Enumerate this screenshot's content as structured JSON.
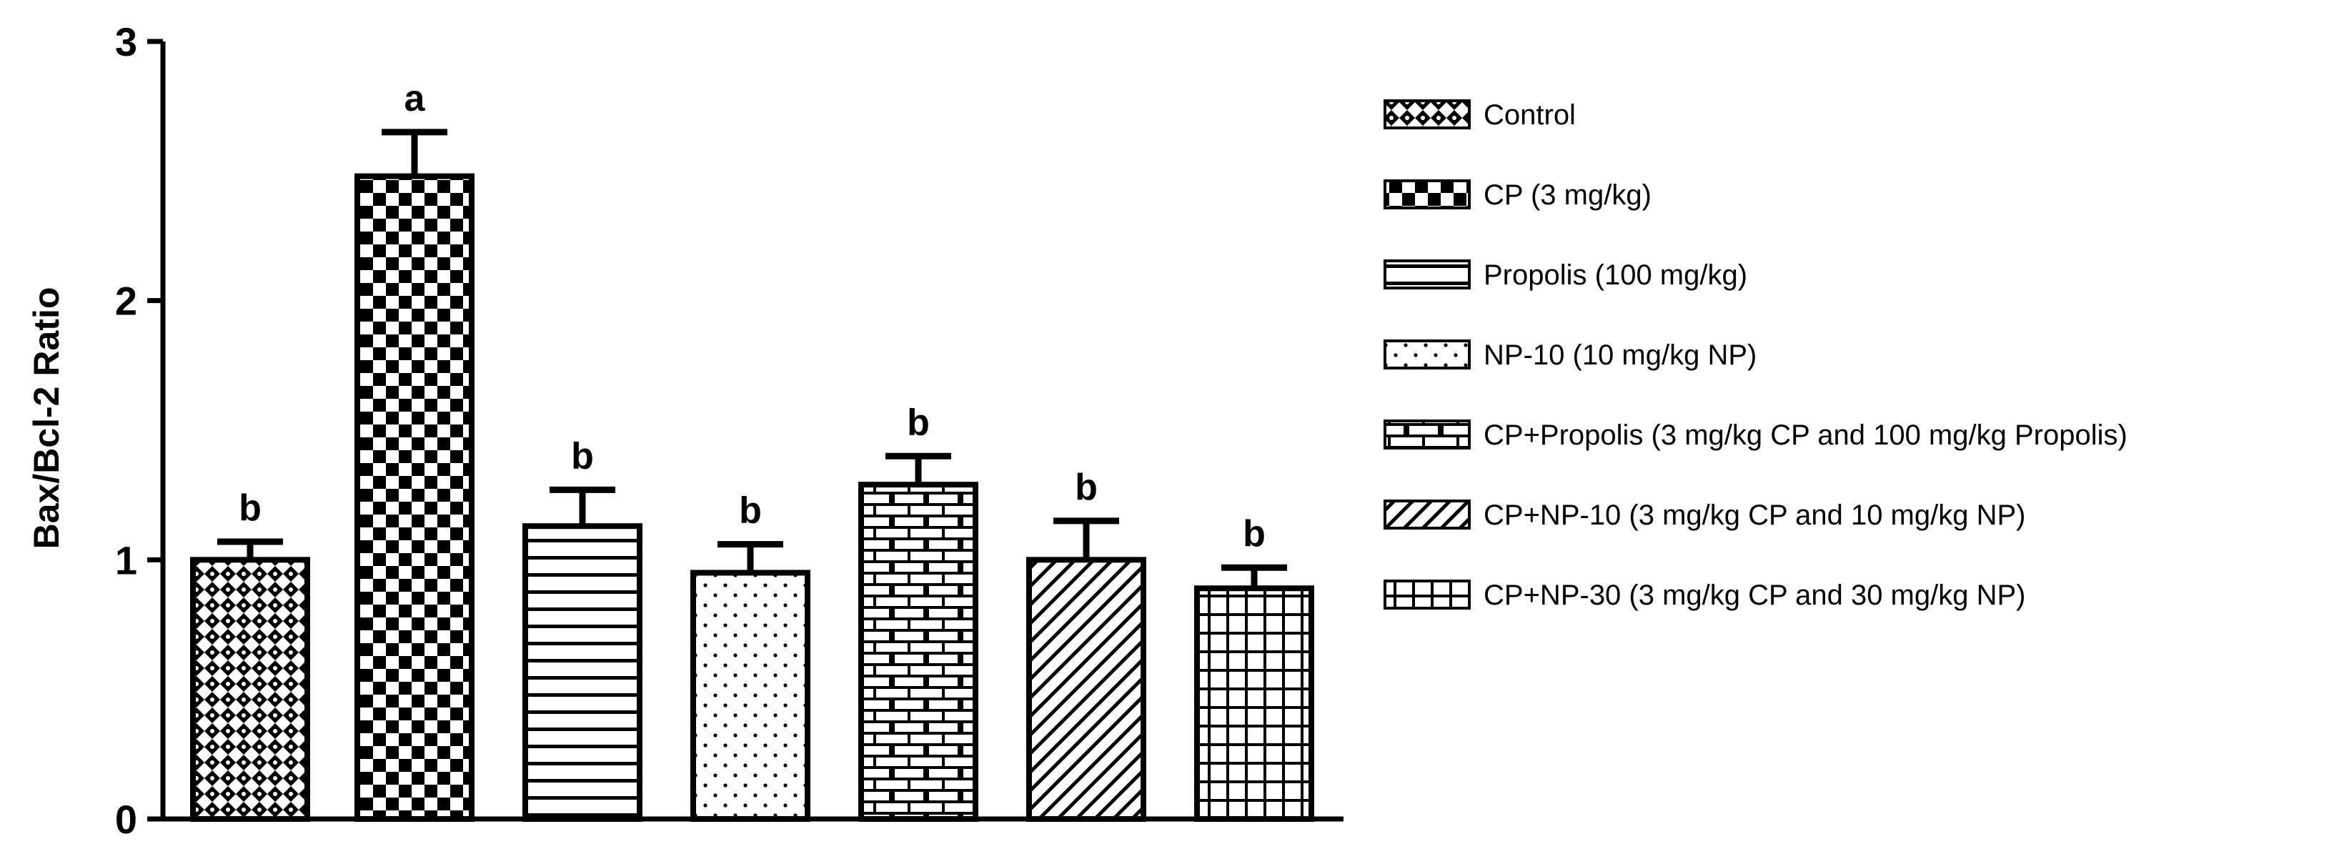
{
  "chart_data": {
    "type": "bar",
    "title": "",
    "xlabel": "",
    "ylabel": "Bax/Bcl-2 Ratio",
    "ylim": [
      0,
      3
    ],
    "yticks": [
      0,
      1,
      2,
      3
    ],
    "yticklabels": [
      "0",
      "1",
      "2",
      "3"
    ],
    "grid": false,
    "legend_position": "right",
    "categories": [
      "Control",
      "CP (3 mg/kg)",
      "Propolis (100 mg/kg)",
      "NP-10 (10 mg/kg NP)",
      "CP+Propolis (3 mg/kg CP and 100 mg/kg Propolis)",
      "CP+NP-10 (3 mg/kg CP and 10 mg/kg NP)",
      "CP+NP-30  (3 mg/kg CP and 30 mg/kg NP)"
    ],
    "values": [
      1.0,
      2.48,
      1.13,
      0.95,
      1.29,
      1.0,
      0.89
    ],
    "error": [
      0.07,
      0.17,
      0.14,
      0.11,
      0.11,
      0.15,
      0.08
    ],
    "significance": [
      "b",
      "a",
      "b",
      "b",
      "b",
      "b",
      "b"
    ],
    "patterns": [
      "diamond-dots",
      "checker",
      "horizontal-lines",
      "dots",
      "bricks",
      "diagonal-lines",
      "grid"
    ],
    "colors": {
      "stroke": "#000000",
      "fill": "#ffffff"
    }
  }
}
